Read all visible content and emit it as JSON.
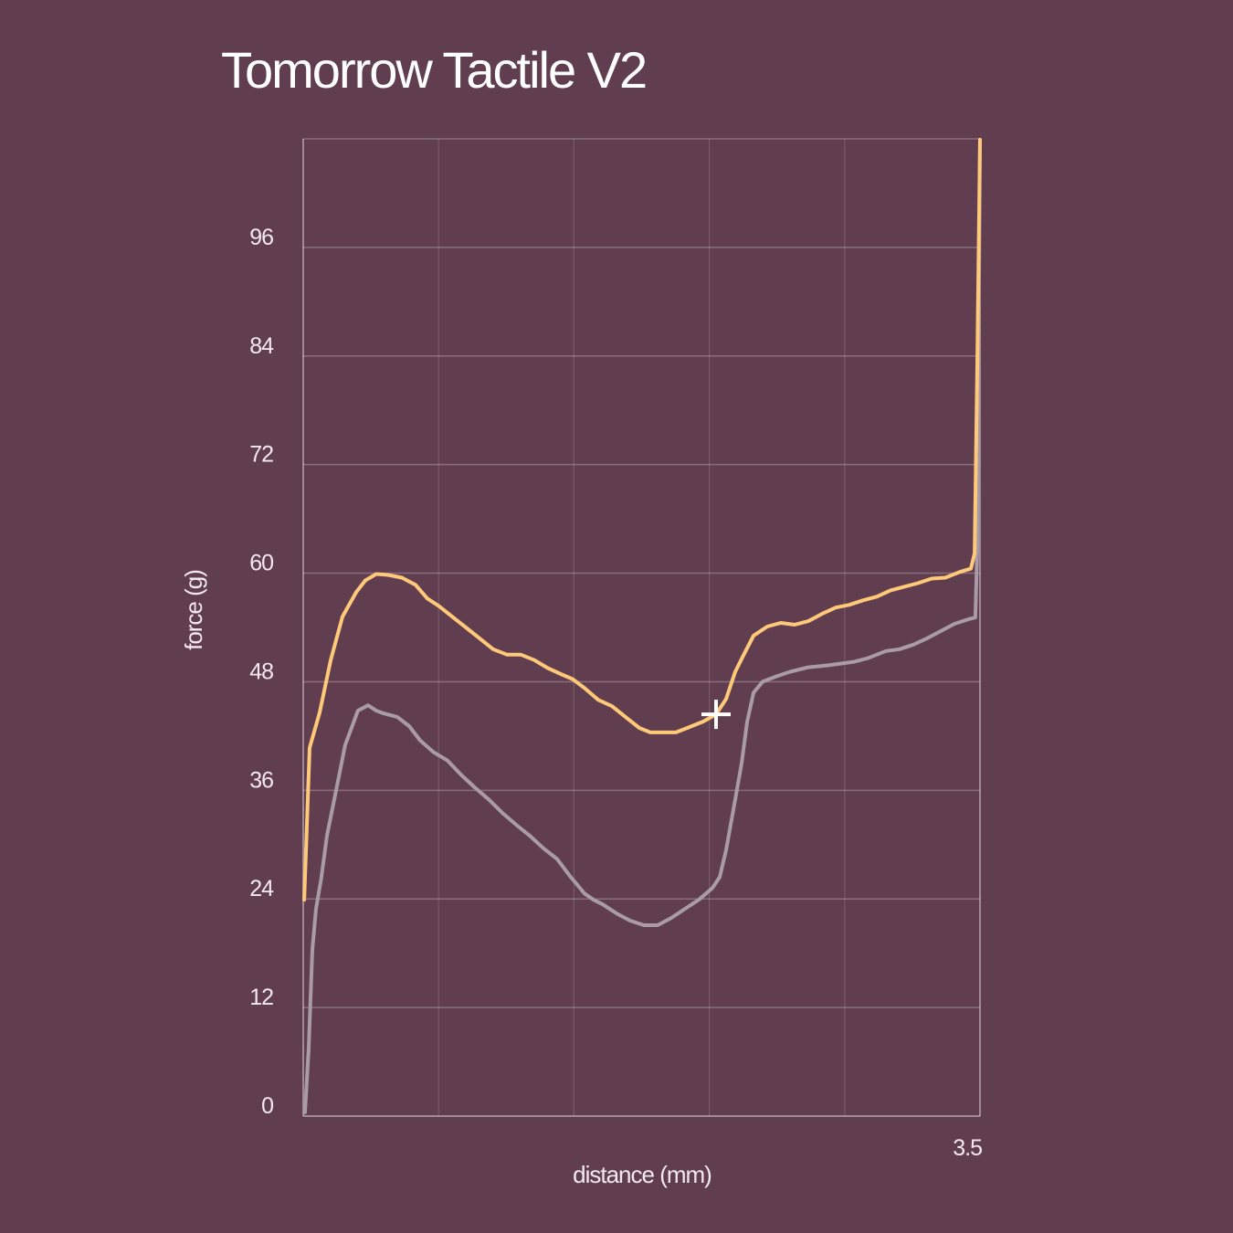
{
  "chart_data": {
    "type": "line",
    "title": "Tomorrow Tactile V2",
    "xlabel": "distance (mm)",
    "ylabel": "force (g)",
    "xlim": [
      0,
      3.5
    ],
    "ylim": [
      0,
      108
    ],
    "x_ticks": [
      {
        "value": 3.5,
        "label": "3.5"
      }
    ],
    "x_grid": [
      0.7,
      1.4,
      2.1,
      2.8
    ],
    "y_ticks": [
      {
        "value": 0,
        "label": "0"
      },
      {
        "value": 12,
        "label": "12"
      },
      {
        "value": 24,
        "label": "24"
      },
      {
        "value": 36,
        "label": "36"
      },
      {
        "value": 48,
        "label": "48"
      },
      {
        "value": 60,
        "label": "60"
      },
      {
        "value": 72,
        "label": "72"
      },
      {
        "value": 84,
        "label": "84"
      },
      {
        "value": 96,
        "label": "96"
      }
    ],
    "grid": true,
    "legend": "none",
    "background": "#613e4f",
    "marker": {
      "shape": "cross",
      "x": 2.135,
      "y": 44.4,
      "color": "#ffffff"
    },
    "series": [
      {
        "color": "#a99ca6",
        "x": [
          0.009,
          0.028,
          0.047,
          0.066,
          0.094,
          0.123,
          0.156,
          0.189,
          0.217,
          0.25,
          0.283,
          0.335,
          0.378,
          0.416,
          0.487,
          0.548,
          0.605,
          0.675,
          0.746,
          0.817,
          0.888,
          0.959,
          1.03,
          1.101,
          1.171,
          1.242,
          1.313,
          1.384,
          1.455,
          1.502,
          1.549,
          1.62,
          1.691,
          1.762,
          1.833,
          1.904,
          1.974,
          2.045,
          2.116,
          2.154,
          2.187,
          2.234,
          2.267,
          2.296,
          2.329,
          2.376,
          2.447,
          2.518,
          2.612,
          2.707,
          2.848,
          2.919,
          3.014,
          3.084,
          3.155,
          3.226,
          3.297,
          3.368,
          3.439,
          3.476,
          3.486,
          3.5
        ],
        "y": [
          0.4,
          7.3,
          18.4,
          22.9,
          26.4,
          31.0,
          34.5,
          38.0,
          41.0,
          42.9,
          44.8,
          45.4,
          44.8,
          44.5,
          44.1,
          43.1,
          41.5,
          40.2,
          39.3,
          37.7,
          36.3,
          35.0,
          33.5,
          32.2,
          31.0,
          29.6,
          28.4,
          26.4,
          24.6,
          23.9,
          23.4,
          22.4,
          21.6,
          21.1,
          21.1,
          21.9,
          22.9,
          23.9,
          25.2,
          26.4,
          29.4,
          35.0,
          39.0,
          43.6,
          46.8,
          48.0,
          48.6,
          49.1,
          49.6,
          49.8,
          50.2,
          50.6,
          51.4,
          51.6,
          52.1,
          52.8,
          53.6,
          54.4,
          54.9,
          55.1,
          62.7,
          107.9
        ]
      },
      {
        "color": "#ffc97a",
        "x": [
          0.005,
          0.033,
          0.085,
          0.142,
          0.203,
          0.274,
          0.321,
          0.378,
          0.439,
          0.51,
          0.581,
          0.642,
          0.699,
          0.77,
          0.841,
          0.912,
          0.982,
          1.053,
          1.124,
          1.195,
          1.266,
          1.337,
          1.393,
          1.455,
          1.526,
          1.597,
          1.667,
          1.738,
          1.795,
          1.927,
          1.998,
          2.069,
          2.135,
          2.187,
          2.234,
          2.281,
          2.329,
          2.4,
          2.47,
          2.541,
          2.612,
          2.683,
          2.754,
          2.825,
          2.895,
          2.966,
          3.037,
          3.108,
          3.179,
          3.25,
          3.321,
          3.391,
          3.453,
          3.472,
          3.486,
          3.5
        ],
        "y": [
          23.9,
          40.7,
          44.6,
          50.4,
          55.2,
          57.9,
          59.2,
          59.9,
          59.8,
          59.5,
          58.7,
          57.2,
          56.4,
          55.2,
          54.0,
          52.8,
          51.6,
          51.0,
          51.0,
          50.4,
          49.5,
          48.8,
          48.3,
          47.3,
          46.0,
          45.3,
          44.1,
          42.9,
          42.4,
          42.4,
          43.0,
          43.6,
          44.4,
          46.1,
          49.1,
          51.1,
          53.1,
          54.1,
          54.5,
          54.3,
          54.7,
          55.5,
          56.2,
          56.5,
          57.0,
          57.4,
          58.1,
          58.5,
          58.9,
          59.4,
          59.5,
          60.1,
          60.5,
          62.2,
          82.9,
          107.9
        ]
      }
    ]
  }
}
